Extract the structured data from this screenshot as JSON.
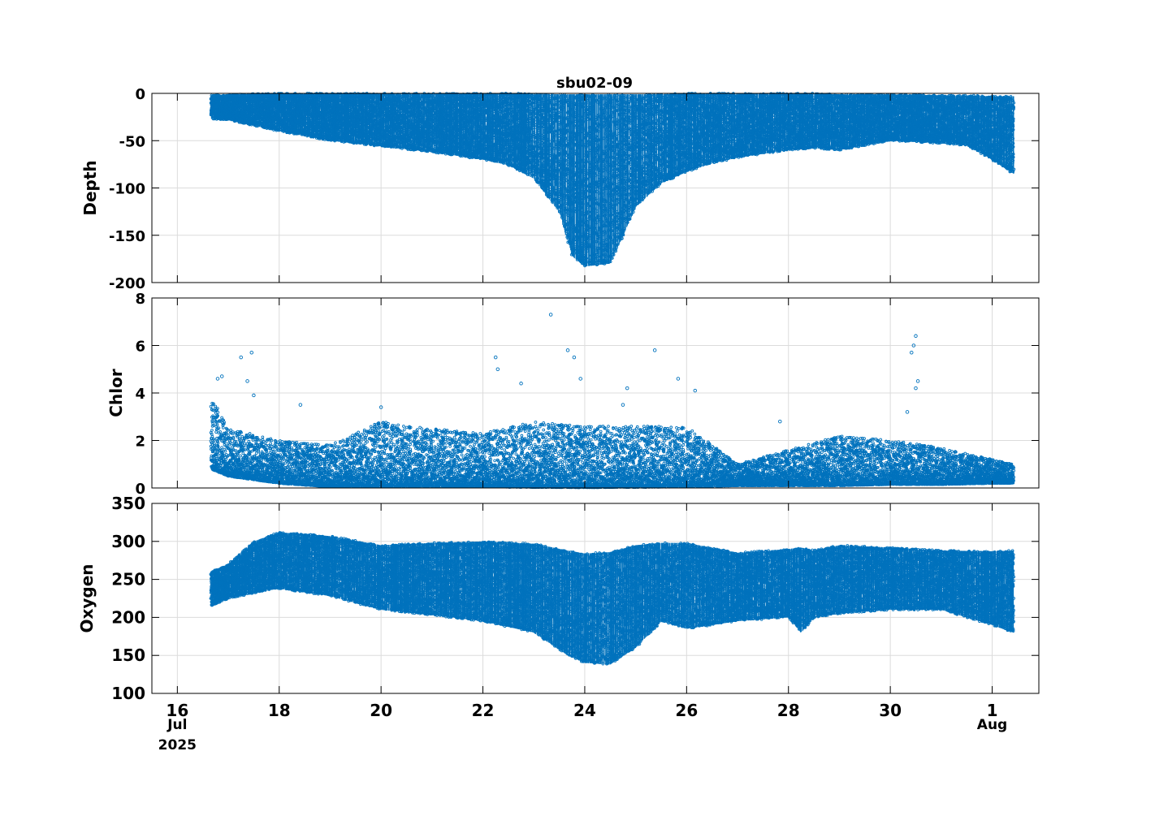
{
  "title": "sbu02-09",
  "colors": {
    "marker": "#0072BD",
    "grid": "#dcdcdc",
    "axes": "#000000"
  },
  "chart_data": [
    {
      "type": "scatter",
      "ylabel": "Depth",
      "xlim": [
        "2025-07-15T12:00",
        "2025-08-01T22:00"
      ],
      "ylim": [
        -200,
        0
      ],
      "yticks": [
        -200,
        -150,
        -100,
        -50,
        0
      ],
      "grid": true,
      "profile_start": "2025-07-16T16:00",
      "profile_end": "2025-08-01T10:00",
      "envelope": {
        "description": "profile depth range over time",
        "x": [
          "2025-07-16T16",
          "2025-07-17T00",
          "2025-07-18T00",
          "2025-07-19T00",
          "2025-07-20T00",
          "2025-07-21T00",
          "2025-07-22T00",
          "2025-07-22T12",
          "2025-07-23T00",
          "2025-07-23T12",
          "2025-07-23T18",
          "2025-07-24T00",
          "2025-07-24T12",
          "2025-07-24T18",
          "2025-07-25T00",
          "2025-07-25T12",
          "2025-07-26T00",
          "2025-07-26T12",
          "2025-07-27T00",
          "2025-07-28T00",
          "2025-07-28T12",
          "2025-07-29T00",
          "2025-07-29T12",
          "2025-07-30T00",
          "2025-07-31T00",
          "2025-07-31T12",
          "2025-08-01T00",
          "2025-08-01T10"
        ],
        "top": [
          -2,
          -1,
          0,
          0,
          0,
          0,
          0,
          0,
          0,
          -1,
          -1,
          -1,
          -1,
          -1,
          -1,
          -1,
          0,
          0,
          0,
          0,
          0,
          -1,
          -1,
          -1,
          -2,
          -2,
          -3,
          -3
        ],
        "bottom": [
          -27,
          -28,
          -40,
          -50,
          -56,
          -62,
          -70,
          -76,
          -90,
          -125,
          -172,
          -183,
          -180,
          -150,
          -120,
          -95,
          -83,
          -74,
          -68,
          -60,
          -58,
          -60,
          -55,
          -50,
          -53,
          -55,
          -70,
          -85
        ]
      }
    },
    {
      "type": "scatter",
      "ylabel": "Chlor",
      "xlim": [
        "2025-07-15T12:00",
        "2025-08-01T22:00"
      ],
      "ylim": [
        0,
        8
      ],
      "yticks": [
        0,
        2,
        4,
        6,
        8
      ],
      "grid": true,
      "envelope": {
        "description": "approximate upper extent of the dense point cloud",
        "x": [
          "2025-07-16T16",
          "2025-07-17T00",
          "2025-07-18T00",
          "2025-07-19T00",
          "2025-07-20T00",
          "2025-07-21T00",
          "2025-07-22T00",
          "2025-07-23T00",
          "2025-07-24T00",
          "2025-07-25T00",
          "2025-07-26T00",
          "2025-07-27T00",
          "2025-07-28T00",
          "2025-07-29T00",
          "2025-07-30T00",
          "2025-07-31T00",
          "2025-08-01T00",
          "2025-08-01T10"
        ],
        "top": [
          3.8,
          2.5,
          2.0,
          1.8,
          2.8,
          2.5,
          2.3,
          2.8,
          2.6,
          2.6,
          2.6,
          1.0,
          1.6,
          2.2,
          2.0,
          1.7,
          1.2,
          1.0
        ],
        "bottom": [
          0.8,
          0.5,
          0.2,
          0.05,
          0.05,
          0.05,
          0.05,
          0.03,
          0.02,
          0.03,
          0.05,
          0.1,
          0.1,
          0.1,
          0.15,
          0.15,
          0.2,
          0.2
        ]
      },
      "outliers": [
        {
          "x": "2025-07-16T19",
          "y": 4.6
        },
        {
          "x": "2025-07-16T21",
          "y": 4.7
        },
        {
          "x": "2025-07-17T06",
          "y": 5.5
        },
        {
          "x": "2025-07-17T09",
          "y": 4.5
        },
        {
          "x": "2025-07-17T11",
          "y": 5.7
        },
        {
          "x": "2025-07-17T12",
          "y": 3.9
        },
        {
          "x": "2025-07-18T10",
          "y": 3.5
        },
        {
          "x": "2025-07-20T00",
          "y": 3.4
        },
        {
          "x": "2025-07-22T06",
          "y": 5.5
        },
        {
          "x": "2025-07-22T07",
          "y": 5.0
        },
        {
          "x": "2025-07-22T18",
          "y": 4.4
        },
        {
          "x": "2025-07-23T08",
          "y": 7.3
        },
        {
          "x": "2025-07-23T16",
          "y": 5.8
        },
        {
          "x": "2025-07-23T19",
          "y": 5.5
        },
        {
          "x": "2025-07-23T22",
          "y": 4.6
        },
        {
          "x": "2025-07-24T18",
          "y": 3.5
        },
        {
          "x": "2025-07-24T20",
          "y": 4.2
        },
        {
          "x": "2025-07-25T09",
          "y": 5.8
        },
        {
          "x": "2025-07-25T20",
          "y": 4.6
        },
        {
          "x": "2025-07-26T04",
          "y": 4.1
        },
        {
          "x": "2025-07-27T20",
          "y": 2.8
        },
        {
          "x": "2025-07-30T12",
          "y": 6.4
        },
        {
          "x": "2025-07-30T11",
          "y": 6.0
        },
        {
          "x": "2025-07-30T10",
          "y": 5.7
        },
        {
          "x": "2025-07-30T13",
          "y": 4.5
        },
        {
          "x": "2025-07-30T12",
          "y": 4.2
        },
        {
          "x": "2025-07-30T08",
          "y": 3.2
        }
      ]
    },
    {
      "type": "scatter",
      "ylabel": "Oxygen",
      "xlim": [
        "2025-07-15T12:00",
        "2025-08-01T22:00"
      ],
      "ylim": [
        100,
        350
      ],
      "yticks": [
        100,
        150,
        200,
        250,
        300,
        350
      ],
      "grid": true,
      "envelope": {
        "description": "approximate range of the point cloud",
        "x": [
          "2025-07-16T16",
          "2025-07-17T00",
          "2025-07-17T12",
          "2025-07-18T00",
          "2025-07-19T00",
          "2025-07-20T00",
          "2025-07-21T00",
          "2025-07-22T00",
          "2025-07-23T00",
          "2025-07-23T16",
          "2025-07-24T00",
          "2025-07-24T12",
          "2025-07-25T00",
          "2025-07-25T12",
          "2025-07-26T00",
          "2025-07-27T00",
          "2025-07-28T00",
          "2025-07-28T06",
          "2025-07-28T12",
          "2025-07-29T00",
          "2025-07-30T00",
          "2025-07-31T00",
          "2025-08-01T00",
          "2025-08-01T10"
        ],
        "top": [
          260,
          270,
          300,
          312,
          307,
          295,
          298,
          300,
          297,
          288,
          284,
          286,
          295,
          298,
          298,
          285,
          290,
          292,
          288,
          295,
          292,
          288,
          287,
          288
        ],
        "bottom": [
          215,
          225,
          232,
          238,
          228,
          210,
          203,
          195,
          180,
          150,
          140,
          138,
          160,
          195,
          185,
          195,
          200,
          180,
          200,
          205,
          210,
          210,
          190,
          180
        ]
      }
    }
  ],
  "xaxis": {
    "ticks": [
      {
        "value": "2025-07-16",
        "label": "16"
      },
      {
        "value": "2025-07-18",
        "label": "18"
      },
      {
        "value": "2025-07-20",
        "label": "20"
      },
      {
        "value": "2025-07-22",
        "label": "22"
      },
      {
        "value": "2025-07-24",
        "label": "24"
      },
      {
        "value": "2025-07-26",
        "label": "26"
      },
      {
        "value": "2025-07-28",
        "label": "28"
      },
      {
        "value": "2025-07-30",
        "label": "30"
      },
      {
        "value": "2025-08-01",
        "label": "1"
      }
    ],
    "month_labels": [
      {
        "value": "2025-07-16",
        "label": "Jul"
      },
      {
        "value": "2025-08-01",
        "label": "Aug"
      }
    ],
    "year_label": "2025"
  }
}
